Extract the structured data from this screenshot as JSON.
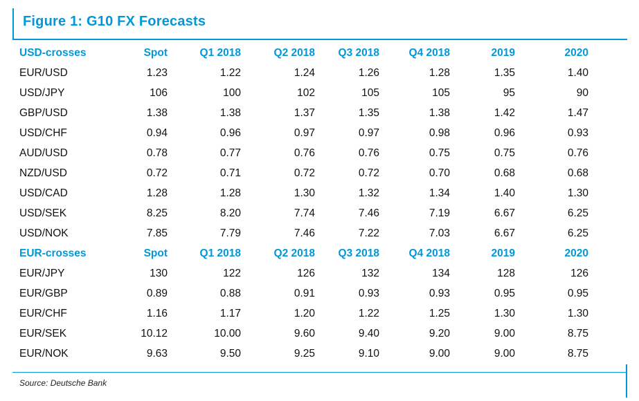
{
  "figure": {
    "title": "Figure 1: G10 FX Forecasts",
    "source_note": "Source: Deutsche Bank",
    "accent_color": "#0098db"
  },
  "table": {
    "sections": [
      {
        "header": [
          "USD-crosses",
          "Spot",
          "Q1 2018",
          "Q2 2018",
          "Q3 2018",
          "Q4 2018",
          "2019",
          "2020"
        ],
        "rows": [
          [
            "EUR/USD",
            "1.23",
            "1.22",
            "1.24",
            "1.26",
            "1.28",
            "1.35",
            "1.40"
          ],
          [
            "USD/JPY",
            "106",
            "100",
            "102",
            "105",
            "105",
            "95",
            "90"
          ],
          [
            "GBP/USD",
            "1.38",
            "1.38",
            "1.37",
            "1.35",
            "1.38",
            "1.42",
            "1.47"
          ],
          [
            "USD/CHF",
            "0.94",
            "0.96",
            "0.97",
            "0.97",
            "0.98",
            "0.96",
            "0.93"
          ],
          [
            "AUD/USD",
            "0.78",
            "0.77",
            "0.76",
            "0.76",
            "0.75",
            "0.75",
            "0.76"
          ],
          [
            "NZD/USD",
            "0.72",
            "0.71",
            "0.72",
            "0.72",
            "0.70",
            "0.68",
            "0.68"
          ],
          [
            "USD/CAD",
            "1.28",
            "1.28",
            "1.30",
            "1.32",
            "1.34",
            "1.40",
            "1.30"
          ],
          [
            "USD/SEK",
            "8.25",
            "8.20",
            "7.74",
            "7.46",
            "7.19",
            "6.67",
            "6.25"
          ],
          [
            "USD/NOK",
            "7.85",
            "7.79",
            "7.46",
            "7.22",
            "7.03",
            "6.67",
            "6.25"
          ]
        ]
      },
      {
        "header": [
          "EUR-crosses",
          "Spot",
          "Q1 2018",
          "Q2 2018",
          "Q3 2018",
          "Q4 2018",
          "2019",
          "2020"
        ],
        "rows": [
          [
            "EUR/JPY",
            "130",
            "122",
            "126",
            "132",
            "134",
            "128",
            "126"
          ],
          [
            "EUR/GBP",
            "0.89",
            "0.88",
            "0.91",
            "0.93",
            "0.93",
            "0.95",
            "0.95"
          ],
          [
            "EUR/CHF",
            "1.16",
            "1.17",
            "1.20",
            "1.22",
            "1.25",
            "1.30",
            "1.30"
          ],
          [
            "EUR/SEK",
            "10.12",
            "10.00",
            "9.60",
            "9.40",
            "9.20",
            "9.00",
            "8.75"
          ],
          [
            "EUR/NOK",
            "9.63",
            "9.50",
            "9.25",
            "9.10",
            "9.00",
            "9.00",
            "8.75"
          ]
        ]
      }
    ]
  }
}
